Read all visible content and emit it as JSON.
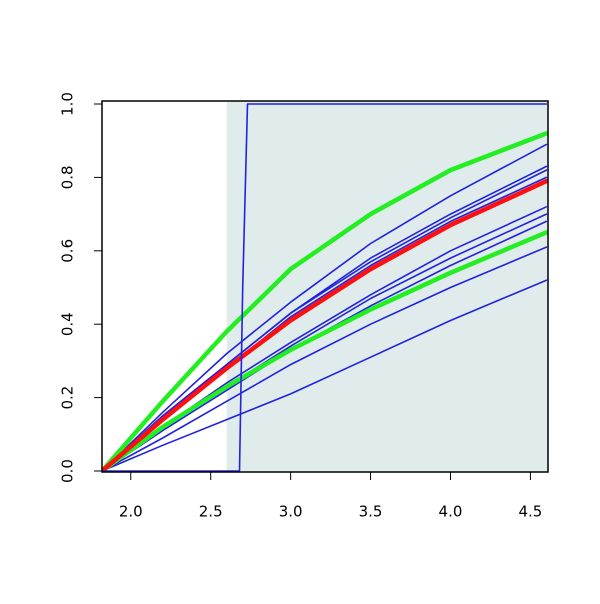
{
  "chart_data": {
    "type": "line",
    "xlim": [
      1.82,
      4.61
    ],
    "ylim": [
      0,
      1
    ],
    "xticks": [
      {
        "value": 2,
        "label": "2.0"
      },
      2.5,
      {
        "value": 3,
        "label": "3.0"
      },
      3.5,
      {
        "value": 4,
        "label": "4.0"
      },
      4.5
    ],
    "yticks": [
      {
        "value": 0,
        "label": "0.0"
      },
      0.2,
      0.4,
      0.6,
      0.8,
      {
        "value": 1,
        "label": "1.0"
      }
    ],
    "shaded_region": [
      2.6,
      4.61
    ],
    "shade_color": "#dfeceb",
    "x": [
      1.82,
      2.2,
      2.6,
      3.0,
      3.5,
      4.0,
      4.6
    ],
    "series": [
      {
        "color": "#2222dd",
        "values": [
          0,
          0.16,
          0.32,
          0.46,
          0.62,
          0.75,
          0.89
        ]
      },
      {
        "color": "#2222dd",
        "values": [
          0,
          0.15,
          0.29,
          0.43,
          0.58,
          0.7,
          0.83
        ]
      },
      {
        "color": "#2222dd",
        "values": [
          0,
          0.15,
          0.29,
          0.43,
          0.57,
          0.69,
          0.82
        ]
      },
      {
        "color": "#2222dd",
        "values": [
          0,
          0.14,
          0.28,
          0.42,
          0.56,
          0.68,
          0.8
        ]
      },
      {
        "color": "#2222dd",
        "values": [
          0,
          0.12,
          0.24,
          0.35,
          0.48,
          0.6,
          0.72
        ]
      },
      {
        "color": "#2222dd",
        "values": [
          0,
          0.12,
          0.23,
          0.34,
          0.47,
          0.58,
          0.7
        ]
      },
      {
        "color": "#2222dd",
        "values": [
          0,
          0.11,
          0.22,
          0.33,
          0.45,
          0.56,
          0.68
        ]
      },
      {
        "color": "#2222dd",
        "values": [
          0,
          0.09,
          0.19,
          0.29,
          0.4,
          0.5,
          0.61
        ]
      },
      {
        "color": "#2222dd",
        "values": [
          0,
          0.07,
          0.14,
          0.21,
          0.31,
          0.41,
          0.52
        ]
      },
      {
        "color": "#22ee22",
        "values": [
          0,
          0.19,
          0.38,
          0.55,
          0.7,
          0.82,
          0.92
        ]
      },
      {
        "color": "#22ee22",
        "values": [
          0,
          0.12,
          0.23,
          0.33,
          0.44,
          0.54,
          0.65
        ]
      },
      {
        "color": "#ff1010",
        "values": [
          0,
          0.14,
          0.28,
          0.41,
          0.55,
          0.67,
          0.79
        ]
      },
      {
        "color": "#2222dd",
        "x": [
          1.82,
          2.68,
          2.7,
          2.73,
          4.6
        ],
        "values": [
          0,
          0,
          0.5,
          1,
          1
        ]
      }
    ]
  }
}
